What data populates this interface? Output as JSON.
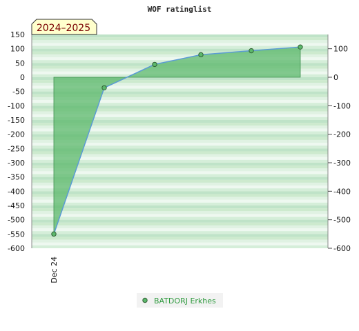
{
  "chart_data": {
    "type": "area",
    "title": "WOF ratinglist",
    "season_badge": "2024–2025",
    "x_tick_labels": [
      "Dec 24"
    ],
    "y_left": {
      "ylim": [
        -600,
        150
      ],
      "ticks": [
        150,
        100,
        50,
        0,
        -50,
        -100,
        -150,
        -200,
        -250,
        -300,
        -350,
        -400,
        -450,
        -500,
        -550,
        -600
      ]
    },
    "y_right": {
      "ylim": [
        -600,
        150
      ],
      "ticks": [
        100,
        0,
        -100,
        -200,
        -300,
        -400,
        -500,
        -600
      ]
    },
    "grid": "horizontal bands",
    "legend_position": "bottom-center",
    "series": [
      {
        "name": "BATDORJ Erkhes",
        "values": [
          -550,
          -37,
          45,
          79,
          93,
          106
        ]
      }
    ],
    "colors": {
      "line": "#5b9bd5",
      "fill": "#5cb86c",
      "marker": "#5cb86c",
      "band_dark": "#bfe3c8",
      "band_light": "#eef8f0",
      "badge_bg": "#ffffcc"
    }
  }
}
